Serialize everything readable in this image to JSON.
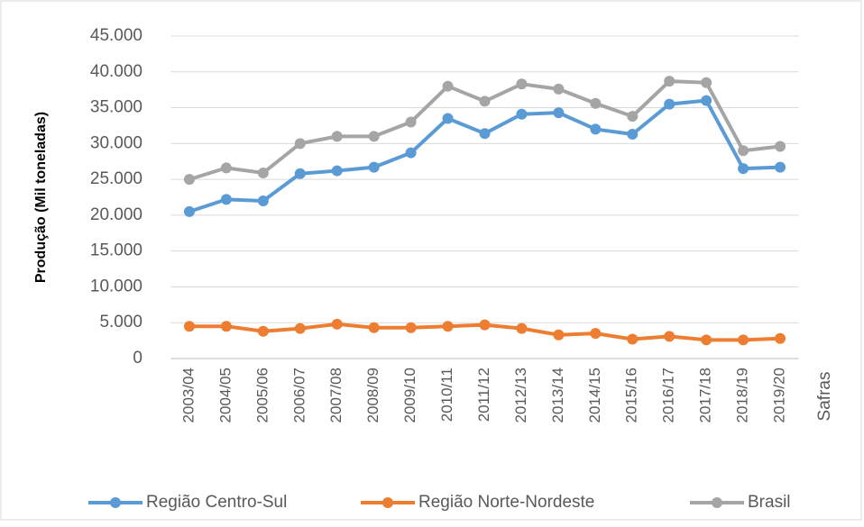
{
  "chart_data": {
    "type": "line",
    "x_label": "Safras",
    "y_label": "Produção (Mil toneladas)",
    "categories": [
      "2003/04",
      "2004/05",
      "2005/06",
      "2006/07",
      "2007/08",
      "2008/09",
      "2009/10",
      "2010/11",
      "2011/12",
      "2012/13",
      "2013/14",
      "2014/15",
      "2015/16",
      "2016/17",
      "2017/18",
      "2018/19",
      "2019/20"
    ],
    "series": [
      {
        "name": "Região Centro-Sul",
        "color": "#5b9bd5",
        "values": [
          20500,
          22200,
          22000,
          25800,
          26200,
          26700,
          28700,
          33500,
          31400,
          34100,
          34300,
          32000,
          31300,
          35500,
          36000,
          26500,
          26700
        ]
      },
      {
        "name": "Região Norte-Nordeste",
        "color": "#ed7d31",
        "values": [
          4500,
          4500,
          3800,
          4200,
          4800,
          4300,
          4300,
          4500,
          4700,
          4200,
          3300,
          3500,
          2700,
          3100,
          2600,
          2600,
          2800
        ]
      },
      {
        "name": "Brasil",
        "color": "#a5a5a5",
        "values": [
          25000,
          26600,
          25900,
          30000,
          31000,
          31000,
          33000,
          38000,
          35900,
          38300,
          37600,
          35600,
          33800,
          38700,
          38500,
          29000,
          29600
        ]
      }
    ],
    "ylim": [
      0,
      45000
    ],
    "yticks": [
      0,
      {
        "value": 5000,
        "label": "5.000"
      },
      {
        "value": 10000,
        "label": "10.000"
      },
      {
        "value": 15000,
        "label": "15.000"
      },
      {
        "value": 20000,
        "label": "20.000"
      },
      {
        "value": 25000,
        "label": "25.000"
      },
      {
        "value": 30000,
        "label": "30.000"
      },
      {
        "value": 35000,
        "label": "35.000"
      },
      {
        "value": 40000,
        "label": "40.000"
      },
      {
        "value": 45000,
        "label": "45.000"
      }
    ],
    "grid": true,
    "legend": "bottom"
  }
}
